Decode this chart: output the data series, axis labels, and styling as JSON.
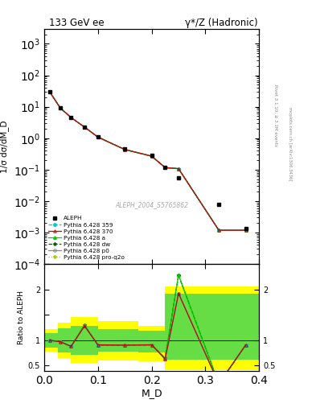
{
  "title_left": "133 GeV ee",
  "title_right": "γ*/Z (Hadronic)",
  "ylabel_main": "1/σ dσ/dM_D",
  "ylabel_ratio": "Ratio to ALEPH",
  "xlabel": "M_D",
  "watermark": "ALEPH_2004_S5765862",
  "right_label": "Rivet 3.1.10; ≥ 3.1M events",
  "arxiv_label": "mcplots.cern.ch [arXiv:1306.3436]",
  "x_data": [
    0.01,
    0.03,
    0.05,
    0.075,
    0.1,
    0.15,
    0.2,
    0.225,
    0.25,
    0.325,
    0.375
  ],
  "aleph_y": [
    30.0,
    9.0,
    4.5,
    2.3,
    1.1,
    0.45,
    0.28,
    0.12,
    0.055,
    0.008,
    0.0013
  ],
  "pythia_359_y": [
    30.0,
    9.1,
    4.55,
    2.25,
    1.08,
    0.435,
    0.268,
    0.116,
    0.107,
    0.00118,
    0.00118
  ],
  "pythia_370_y": [
    30.0,
    9.0,
    4.5,
    2.25,
    1.08,
    0.435,
    0.268,
    0.116,
    0.107,
    0.00118,
    0.00118
  ],
  "pythia_a_y": [
    30.0,
    9.1,
    4.55,
    2.25,
    1.08,
    0.435,
    0.268,
    0.116,
    0.107,
    0.00118,
    0.00118
  ],
  "pythia_dw_y": [
    30.0,
    9.1,
    4.55,
    2.25,
    1.08,
    0.435,
    0.268,
    0.116,
    0.107,
    0.00118,
    0.00118
  ],
  "pythia_p0_y": [
    30.0,
    9.0,
    4.5,
    2.25,
    1.08,
    0.435,
    0.268,
    0.116,
    0.107,
    0.00118,
    0.00118
  ],
  "pythia_proq2o_y": [
    30.0,
    9.1,
    4.55,
    2.25,
    1.08,
    0.435,
    0.268,
    0.116,
    0.107,
    0.00118,
    0.00118
  ],
  "ratio_x": [
    0.01,
    0.03,
    0.05,
    0.075,
    0.1,
    0.15,
    0.2,
    0.225,
    0.25,
    0.325,
    0.375
  ],
  "ratio_y_359": [
    1.0,
    0.97,
    0.88,
    1.28,
    0.91,
    0.905,
    0.91,
    0.63,
    1.92,
    0.145,
    0.91
  ],
  "ratio_y_370": [
    1.0,
    0.97,
    0.88,
    1.28,
    0.91,
    0.905,
    0.91,
    0.63,
    1.92,
    0.145,
    0.91
  ],
  "ratio_y_a": [
    1.0,
    0.97,
    0.88,
    1.3,
    0.9,
    0.905,
    0.91,
    0.65,
    2.28,
    0.143,
    0.9
  ],
  "ratio_y_dw": [
    1.0,
    0.97,
    0.88,
    1.3,
    0.9,
    0.905,
    0.91,
    0.65,
    2.28,
    0.143,
    0.9
  ],
  "ratio_y_p0": [
    1.0,
    0.97,
    0.88,
    1.28,
    0.91,
    0.905,
    0.91,
    0.63,
    1.92,
    0.145,
    0.91
  ],
  "ratio_y_proq2o": [
    1.0,
    0.97,
    0.88,
    1.3,
    0.9,
    0.905,
    0.91,
    0.65,
    2.28,
    0.143,
    0.9
  ],
  "band_yellow_edges": [
    0.0,
    0.025,
    0.05,
    0.1,
    0.175,
    0.225,
    0.275,
    0.325,
    0.4
  ],
  "band_yellow_lo": [
    0.78,
    0.65,
    0.55,
    0.6,
    0.58,
    0.42,
    0.42,
    0.42,
    0.42
  ],
  "band_yellow_hi": [
    1.22,
    1.35,
    1.45,
    1.38,
    1.28,
    2.05,
    2.05,
    2.05,
    2.05
  ],
  "band_green_edges": [
    0.0,
    0.025,
    0.05,
    0.1,
    0.175,
    0.225,
    0.275,
    0.325,
    0.4
  ],
  "band_green_lo": [
    0.86,
    0.76,
    0.72,
    0.78,
    0.76,
    0.62,
    0.62,
    0.62,
    0.62
  ],
  "band_green_hi": [
    1.14,
    1.24,
    1.28,
    1.22,
    1.18,
    1.92,
    1.92,
    1.92,
    1.92
  ],
  "color_359": "#00cccc",
  "color_370": "#cc0000",
  "color_a": "#00cc00",
  "color_dw": "#006600",
  "color_p0": "#888888",
  "color_proq2o": "#aacc00",
  "xlim": [
    0.0,
    0.4
  ],
  "ylim_main": [
    0.0001,
    3000.0
  ],
  "ylim_ratio": [
    0.4,
    2.5
  ],
  "ratio_yticks": [
    0.5,
    1.0,
    1.5,
    2.0,
    2.5
  ],
  "ratio_ytick_labels": [
    "0.5",
    "1",
    "",
    "2",
    ""
  ]
}
